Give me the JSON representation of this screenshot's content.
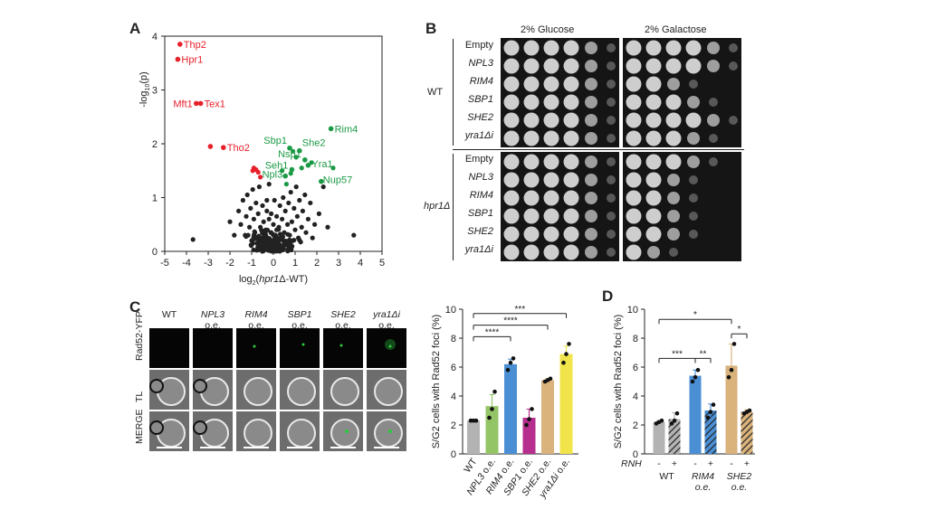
{
  "panels": {
    "A": "A",
    "B": "B",
    "C": "C",
    "D": "D"
  },
  "panel_a": {
    "chart_data": {
      "type": "scatter",
      "xlim": [
        -5,
        5
      ],
      "ylim": [
        0,
        4
      ],
      "xticks": [
        "-5",
        "-4",
        "-3",
        "-2",
        "-1",
        "0",
        "1",
        "2",
        "3",
        "4",
        "5"
      ],
      "yticks": [
        "0",
        "1",
        "2",
        "3",
        "4"
      ],
      "xlabel_pre": "log",
      "xlabel_sub": "2",
      "xlabel_paren": "(",
      "xlabel_gene": "hpr1",
      "xlabel_post": "Δ-WT)",
      "ylabel_pre": "-log",
      "ylabel_sub": "10",
      "ylabel_post": "(p)",
      "colors": {
        "neutral": "#222222",
        "down": "#e8202a",
        "up": "#1b9a45"
      },
      "labeled_down": [
        {
          "name": "Thp2",
          "x": -4.3,
          "y": 3.85
        },
        {
          "name": "Hpr1",
          "x": -4.4,
          "y": 3.57
        },
        {
          "name": "Mft1",
          "x": -3.55,
          "y": 2.75
        },
        {
          "name": "Tex1",
          "x": -3.35,
          "y": 2.75
        },
        {
          "name": "Tho2",
          "x": -2.3,
          "y": 1.93
        },
        {
          "name": "",
          "x": -2.9,
          "y": 1.95
        }
      ],
      "labeled_up": [
        {
          "name": "Rim4",
          "x": 2.65,
          "y": 2.28
        },
        {
          "name": "Sbp1",
          "x": 0.75,
          "y": 1.92
        },
        {
          "name": "She2",
          "x": 1.2,
          "y": 1.87
        },
        {
          "name": "Nsp1",
          "x": 1.45,
          "y": 1.7
        },
        {
          "name": "Yra1",
          "x": 1.6,
          "y": 1.6
        },
        {
          "name": "Seh1",
          "x": 0.85,
          "y": 1.52
        },
        {
          "name": "Npl3",
          "x": 0.55,
          "y": 1.4
        },
        {
          "name": "Nup57",
          "x": 2.2,
          "y": 1.3
        }
      ],
      "unlabeled_up": [
        {
          "x": 0.9,
          "y": 1.86
        },
        {
          "x": 1.05,
          "y": 1.75
        },
        {
          "x": 1.3,
          "y": 1.55
        },
        {
          "x": 2.75,
          "y": 1.55
        },
        {
          "x": 0.8,
          "y": 1.45
        },
        {
          "x": 0.6,
          "y": 1.25
        },
        {
          "x": 0.4,
          "y": 1.5
        },
        {
          "x": 1.75,
          "y": 1.65
        }
      ],
      "red_cluster": [
        {
          "x": -0.95,
          "y": 1.5
        },
        {
          "x": -0.8,
          "y": 1.52
        },
        {
          "x": -0.7,
          "y": 1.47
        },
        {
          "x": -0.6,
          "y": 1.38
        },
        {
          "x": -0.9,
          "y": 1.55
        }
      ],
      "neutral_points": [
        {
          "x": -3.7,
          "y": 0.22
        },
        {
          "x": 3.7,
          "y": 0.3
        },
        {
          "x": -2.0,
          "y": 0.55
        },
        {
          "x": -1.8,
          "y": 0.3
        },
        {
          "x": -1.6,
          "y": 0.75
        },
        {
          "x": -1.5,
          "y": 0.5
        },
        {
          "x": -1.4,
          "y": 0.95
        },
        {
          "x": -1.3,
          "y": 0.3
        },
        {
          "x": -1.25,
          "y": 0.65
        },
        {
          "x": -1.2,
          "y": 1.05
        },
        {
          "x": -1.1,
          "y": 0.45
        },
        {
          "x": -1.05,
          "y": 0.8
        },
        {
          "x": -1.0,
          "y": 0.2
        },
        {
          "x": -0.95,
          "y": 1.15
        },
        {
          "x": -0.9,
          "y": 0.6
        },
        {
          "x": -0.85,
          "y": 0.35
        },
        {
          "x": -0.8,
          "y": 0.9
        },
        {
          "x": -0.75,
          "y": 0.15
        },
        {
          "x": -0.7,
          "y": 0.7
        },
        {
          "x": -0.65,
          "y": 1.2
        },
        {
          "x": -0.6,
          "y": 0.45
        },
        {
          "x": -0.55,
          "y": 0.25
        },
        {
          "x": -0.5,
          "y": 0.85
        },
        {
          "x": -0.45,
          "y": 0.55
        },
        {
          "x": -0.4,
          "y": 0.1
        },
        {
          "x": -0.35,
          "y": 0.4
        },
        {
          "x": -0.3,
          "y": 0.75
        },
        {
          "x": -0.25,
          "y": 0.2
        },
        {
          "x": -0.2,
          "y": 0.6
        },
        {
          "x": -0.15,
          "y": 0.05
        },
        {
          "x": -0.1,
          "y": 0.35
        },
        {
          "x": -0.05,
          "y": 0.15
        },
        {
          "x": 0.0,
          "y": 0.5
        },
        {
          "x": 0.05,
          "y": 0.08
        },
        {
          "x": 0.1,
          "y": 0.3
        },
        {
          "x": 0.15,
          "y": 0.65
        },
        {
          "x": 0.2,
          "y": 0.18
        },
        {
          "x": 0.25,
          "y": 0.45
        },
        {
          "x": 0.3,
          "y": 0.85
        },
        {
          "x": 0.35,
          "y": 0.25
        },
        {
          "x": 0.4,
          "y": 0.6
        },
        {
          "x": 0.45,
          "y": 1.0
        },
        {
          "x": 0.5,
          "y": 0.35
        },
        {
          "x": 0.55,
          "y": 0.75
        },
        {
          "x": 0.6,
          "y": 0.12
        },
        {
          "x": 0.65,
          "y": 0.5
        },
        {
          "x": 0.7,
          "y": 0.9
        },
        {
          "x": 0.75,
          "y": 0.3
        },
        {
          "x": 0.8,
          "y": 1.1
        },
        {
          "x": 0.85,
          "y": 0.55
        },
        {
          "x": 0.9,
          "y": 0.2
        },
        {
          "x": 0.95,
          "y": 0.8
        },
        {
          "x": 1.0,
          "y": 0.4
        },
        {
          "x": 1.05,
          "y": 1.2
        },
        {
          "x": 1.1,
          "y": 0.65
        },
        {
          "x": 1.15,
          "y": 0.25
        },
        {
          "x": 1.2,
          "y": 0.95
        },
        {
          "x": 1.3,
          "y": 0.45
        },
        {
          "x": 1.35,
          "y": 0.75
        },
        {
          "x": 1.45,
          "y": 1.05
        },
        {
          "x": 1.5,
          "y": 0.35
        },
        {
          "x": 1.6,
          "y": 0.6
        },
        {
          "x": 1.7,
          "y": 0.9
        },
        {
          "x": 1.8,
          "y": 0.25
        },
        {
          "x": 1.9,
          "y": 0.5
        },
        {
          "x": 2.1,
          "y": 0.7
        },
        {
          "x": 2.3,
          "y": 1.2
        },
        {
          "x": 2.5,
          "y": 0.45
        },
        {
          "x": -0.3,
          "y": 0.95
        },
        {
          "x": -0.2,
          "y": 1.25
        },
        {
          "x": 0.05,
          "y": 0.95
        },
        {
          "x": -0.5,
          "y": 0.05
        },
        {
          "x": 0.2,
          "y": 0.02
        },
        {
          "x": -0.1,
          "y": 0.7
        },
        {
          "x": 0.15,
          "y": 0.4
        },
        {
          "x": 0.3,
          "y": 0.1
        },
        {
          "x": -0.4,
          "y": 0.3
        },
        {
          "x": 0.45,
          "y": 0.2
        },
        {
          "x": -0.6,
          "y": 0.05
        },
        {
          "x": 0.7,
          "y": 0.05
        }
      ]
    }
  },
  "panel_b": {
    "col_heads": [
      "2% Glucose",
      "2% Galactose"
    ],
    "strains": [
      "WT",
      "hpr1Δ"
    ],
    "rows": [
      "Empty",
      "NPL3",
      "RIM4",
      "SBP1",
      "SHE2",
      "yra1Δi"
    ],
    "row_italic": [
      false,
      true,
      true,
      true,
      true,
      true
    ],
    "growth_glucose_wt": [
      5,
      5,
      5,
      5,
      5,
      5
    ],
    "growth_galactose_wt": [
      5,
      5,
      3,
      4,
      5,
      4
    ],
    "growth_glucose_hpr": [
      5,
      5,
      5,
      5,
      5,
      5
    ],
    "growth_galactose_hpr": [
      4,
      3,
      3,
      3,
      3,
      2
    ]
  },
  "panel_c": {
    "columns": [
      {
        "gene": "WT",
        "suffix": "",
        "italic": false
      },
      {
        "gene": "NPL3",
        "suffix": "o.e.",
        "italic": true
      },
      {
        "gene": "RIM4",
        "suffix": "o.e.",
        "italic": true
      },
      {
        "gene": "SBP1",
        "suffix": "o.e.",
        "italic": true
      },
      {
        "gene": "SHE2",
        "suffix": "o.e.",
        "italic": true
      },
      {
        "gene": "yra1Δi",
        "suffix": "o.e.",
        "italic": true
      }
    ],
    "row_labels": [
      "Rad52-YFP",
      "TL",
      "MERGE"
    ],
    "chart_data": {
      "type": "bar",
      "ylabel": "S/G2 cells with Rad52 foci (%)",
      "ylim": [
        0,
        10
      ],
      "yticks": [
        "0",
        "2",
        "4",
        "6",
        "8",
        "10"
      ],
      "categories": [
        {
          "gene": "WT",
          "suffix": "",
          "italic": false
        },
        {
          "gene": "NPL3",
          "suffix": " o.e.",
          "italic": true
        },
        {
          "gene": "RIM4",
          "suffix": " o.e.",
          "italic": true
        },
        {
          "gene": "SBP1",
          "suffix": " o.e.",
          "italic": true
        },
        {
          "gene": "SHE2",
          "suffix": " o.e.",
          "italic": true
        },
        {
          "gene": "yra1Δi",
          "suffix": " o.e.",
          "italic": true
        }
      ],
      "values": [
        2.3,
        3.3,
        6.2,
        2.5,
        5.1,
        6.9
      ],
      "errors": [
        0.1,
        0.8,
        0.35,
        0.6,
        0.1,
        0.55
      ],
      "points": [
        [
          2.3,
          2.3,
          2.3
        ],
        [
          2.5,
          3.1,
          4.3
        ],
        [
          5.8,
          6.3,
          6.6
        ],
        [
          2.0,
          2.4,
          3.1
        ],
        [
          5.0,
          5.1,
          5.2
        ],
        [
          6.3,
          6.9,
          7.6
        ]
      ],
      "colors": [
        "#b3b3b3",
        "#93c465",
        "#4a8fd4",
        "#b62f8e",
        "#d9b27c",
        "#f0e44a"
      ],
      "significance": [
        {
          "from": 0,
          "to": 5,
          "label": "***",
          "level": 9.7
        },
        {
          "from": 0,
          "to": 4,
          "label": "****",
          "level": 8.9
        },
        {
          "from": 0,
          "to": 2,
          "label": "****",
          "level": 8.1
        }
      ]
    }
  },
  "panel_d": {
    "chart_data": {
      "type": "bar",
      "ylabel": "S/G2 cells with Rad52 foci (%)",
      "ylim": [
        0,
        10
      ],
      "yticks": [
        "0",
        "2",
        "4",
        "6",
        "8",
        "10"
      ],
      "rnh_label": "RNH",
      "rnh_signs": [
        "-",
        "+",
        "-",
        "+",
        "-",
        "+"
      ],
      "groups": [
        {
          "name": "WT",
          "suffix": "",
          "italic": false
        },
        {
          "name": "RIM4",
          "suffix": "o.e.",
          "italic": true
        },
        {
          "name": "SHE2",
          "suffix": "o.e.",
          "italic": true
        }
      ],
      "values": [
        2.2,
        2.4,
        5.4,
        3.0,
        6.1,
        2.9
      ],
      "errors": [
        0.1,
        0.45,
        0.4,
        0.45,
        1.5,
        0.15
      ],
      "points": [
        [
          2.1,
          2.2,
          2.3
        ],
        [
          2.1,
          2.3,
          2.8
        ],
        [
          5.0,
          5.3,
          5.8
        ],
        [
          2.5,
          2.9,
          3.4
        ],
        [
          5.3,
          5.8,
          7.6
        ],
        [
          2.8,
          2.9,
          3.0
        ]
      ],
      "colors": [
        "#b3b3b3",
        "#b3b3b3",
        "#4a8fd4",
        "#4a8fd4",
        "#d9b27c",
        "#d9b27c"
      ],
      "hatched": [
        false,
        true,
        false,
        true,
        false,
        true
      ],
      "significance": [
        {
          "from": 0,
          "to": 4,
          "label": "*",
          "level": 9.3
        },
        {
          "from": 4,
          "to": 5,
          "label": "*",
          "level": 8.3
        },
        {
          "from": 0,
          "to": 2,
          "label": "***",
          "level": 6.6
        },
        {
          "from": 2,
          "to": 3,
          "label": "**",
          "level": 6.6
        }
      ]
    }
  }
}
